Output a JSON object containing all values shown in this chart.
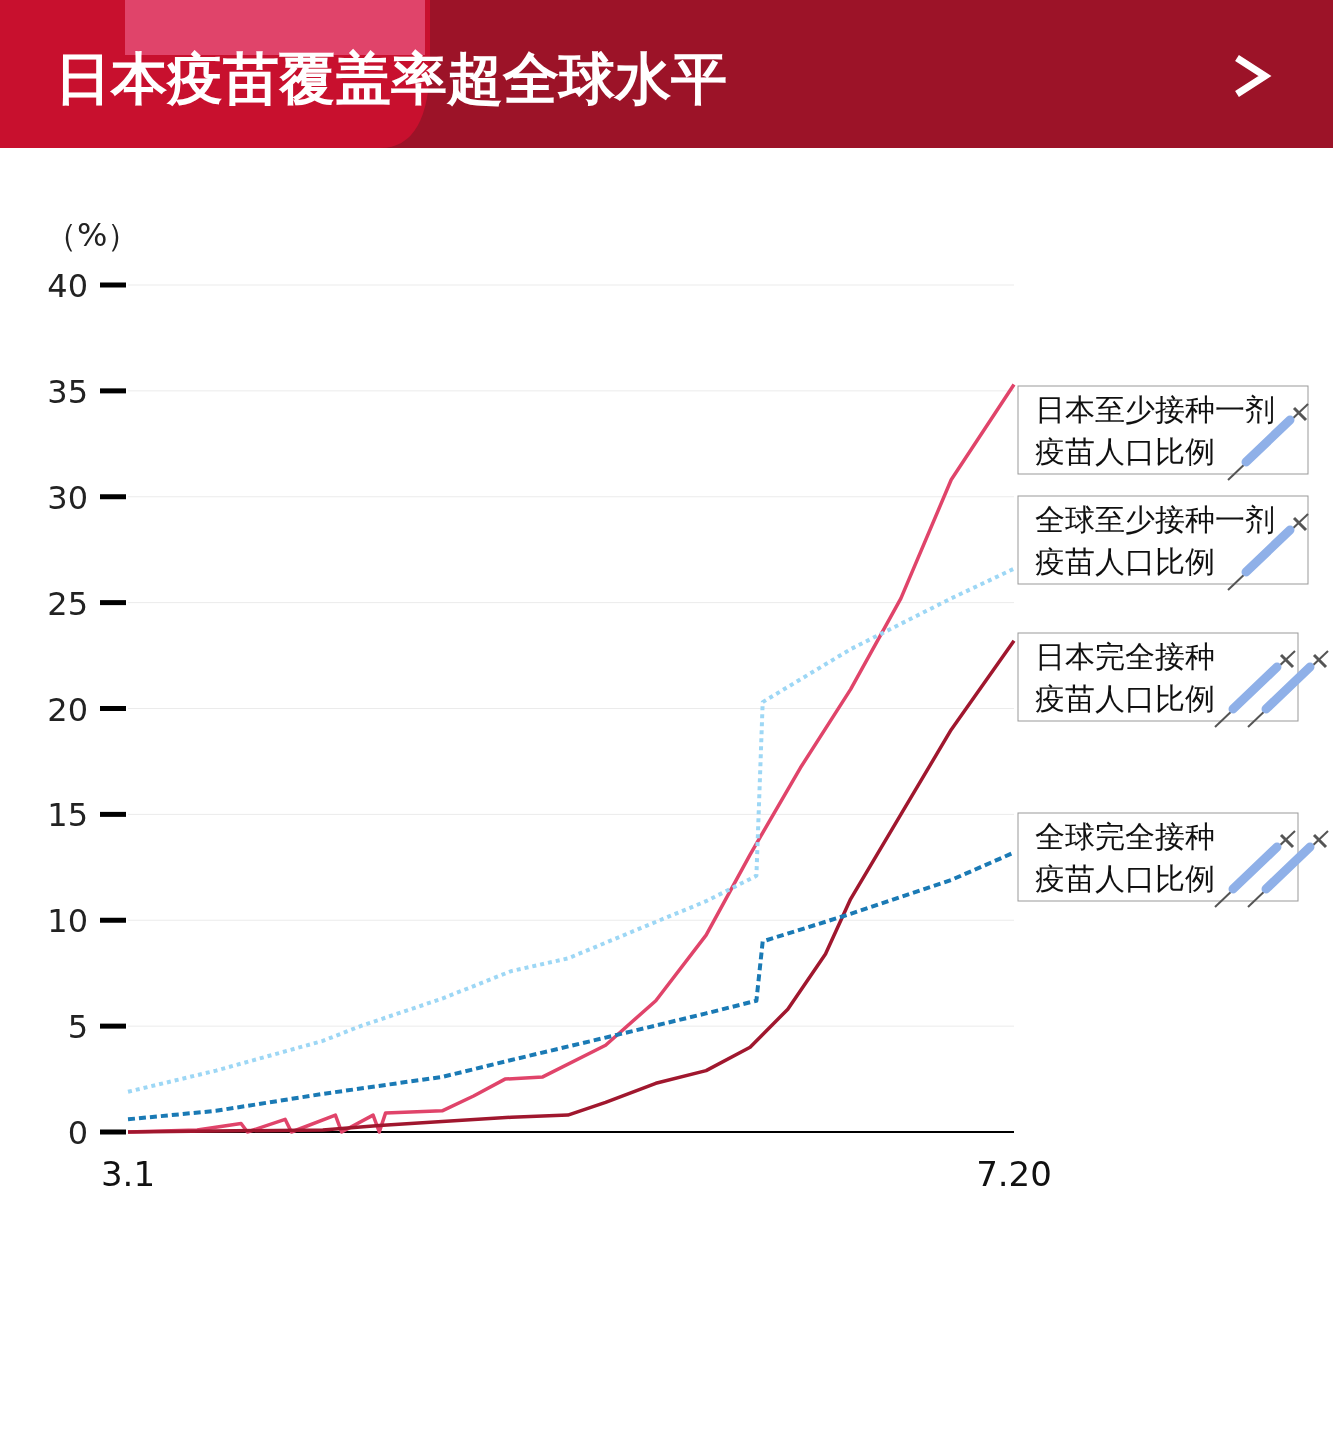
{
  "chart_data": {
    "type": "line",
    "title": "日本疫苗覆盖率超全球水平",
    "ylabel": "（%）",
    "xlim": [
      "--03-01",
      "--07-20"
    ],
    "xticks": [
      {
        "value": "--03-01",
        "label": "3.1"
      },
      {
        "value": "--07-20",
        "label": "7.20"
      }
    ],
    "ylim": [
      0,
      40
    ],
    "yticks": [
      0,
      5,
      10,
      15,
      20,
      25,
      30,
      35,
      40
    ],
    "grid": "y",
    "legend": false,
    "series": [
      {
        "name": "日本至少接种一剂疫苗人口比例",
        "color": "#e0446a",
        "line_style": "solid",
        "x": [
          "--03-01",
          "--03-12",
          "--03-19",
          "--03-20",
          "--03-26",
          "--03-27",
          "--04-03",
          "--04-04",
          "--04-09",
          "--04-10",
          "--04-11",
          "--04-20",
          "--04-25",
          "--04-30",
          "--05-06",
          "--05-16",
          "--05-24",
          "--06-01",
          "--06-08",
          "--06-16",
          "--06-24",
          "--07-02",
          "--07-10",
          "--07-20"
        ],
        "values": [
          0,
          0.1,
          0.4,
          0,
          0.6,
          0,
          0.8,
          0,
          0.8,
          0,
          0.9,
          1.0,
          1.7,
          2.5,
          2.6,
          4.1,
          6.2,
          9.3,
          13.1,
          17.2,
          20.9,
          25.2,
          30.8,
          35.3
        ]
      },
      {
        "name": "全球至少接种一剂疫苗人口比例",
        "color": "#9dd7f5",
        "line_style": "dotted",
        "x": [
          "--03-01",
          "--03-15",
          "--04-01",
          "--04-07",
          "--04-20",
          "--05-01",
          "--05-10",
          "--05-23",
          "--06-01",
          "--06-09",
          "--06-10",
          "--06-24",
          "--07-10",
          "--07-20"
        ],
        "values": [
          1.9,
          2.9,
          4.3,
          5.0,
          6.3,
          7.6,
          8.2,
          9.8,
          10.9,
          12.1,
          20.3,
          22.8,
          25.2,
          26.6
        ]
      },
      {
        "name": "日本完全接种疫苗人口比例",
        "color": "#a0172e",
        "line_style": "solid",
        "x": [
          "--03-01",
          "--04-01",
          "--04-10",
          "--04-20",
          "--05-01",
          "--05-10",
          "--05-16",
          "--05-24",
          "--06-01",
          "--06-08",
          "--06-14",
          "--06-20",
          "--06-24",
          "--07-02",
          "--07-10",
          "--07-20"
        ],
        "values": [
          0,
          0.1,
          0.3,
          0.5,
          0.7,
          0.8,
          1.4,
          2.3,
          2.9,
          4.0,
          5.8,
          8.4,
          11.0,
          15.0,
          19.0,
          23.2
        ]
      },
      {
        "name": "全球完全接种疫苗人口比例",
        "color": "#1a7ab5",
        "line_style": "dashed",
        "x": [
          "--03-01",
          "--03-15",
          "--04-01",
          "--04-20",
          "--05-01",
          "--05-18",
          "--06-01",
          "--06-09",
          "--06-10",
          "--06-24",
          "--07-10",
          "--07-20"
        ],
        "values": [
          0.6,
          1.0,
          1.8,
          2.6,
          3.4,
          4.6,
          5.6,
          6.2,
          9.0,
          10.3,
          11.9,
          13.2
        ]
      }
    ]
  }
}
